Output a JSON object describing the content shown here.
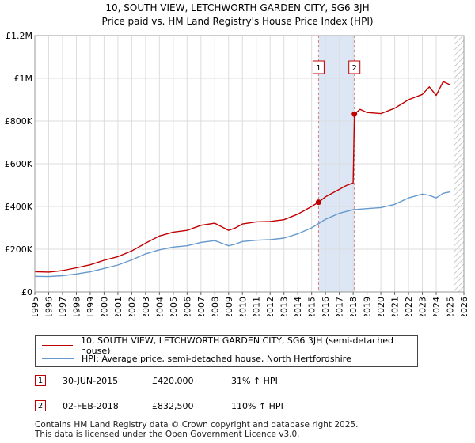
{
  "title_line1": "10, SOUTH VIEW, LETCHWORTH GARDEN CITY, SG6 3JH",
  "title_line2": "Price paid vs. HM Land Registry's House Price Index (HPI)",
  "colors": {
    "price": "#c00000",
    "hpi": "#6699cc",
    "shade": "#dce6f5",
    "grid": "#dddddd",
    "vline": "#d08080"
  },
  "chart_data": {
    "type": "line",
    "xlim": [
      1995,
      2026
    ],
    "ylim": [
      0,
      1200000
    ],
    "x_ticks": [
      "1995",
      "1996",
      "1997",
      "1998",
      "1999",
      "2000",
      "2001",
      "2002",
      "2003",
      "2004",
      "2005",
      "2006",
      "2007",
      "2008",
      "2009",
      "2010",
      "2011",
      "2012",
      "2013",
      "2014",
      "2015",
      "2016",
      "2017",
      "2018",
      "2019",
      "2020",
      "2021",
      "2022",
      "2023",
      "2024",
      "2025",
      "2026"
    ],
    "y_ticks": [
      {
        "value": 0,
        "label": "£0"
      },
      {
        "value": 200000,
        "label": "£200K"
      },
      {
        "value": 400000,
        "label": "£400K"
      },
      {
        "value": 600000,
        "label": "£600K"
      },
      {
        "value": 800000,
        "label": "£800K"
      },
      {
        "value": 1000000,
        "label": "£1M"
      },
      {
        "value": 1200000,
        "label": "£1.2M"
      }
    ],
    "shaded_span": [
      2015.5,
      2018.09
    ],
    "hatched_from": 2025.25,
    "series": [
      {
        "name": "10, SOUTH VIEW, LETCHWORTH GARDEN CITY, SG6 3JH (semi-detached house)",
        "color": "#c00000",
        "x": [
          1995,
          1996,
          1997,
          1998,
          1999,
          2000,
          2001,
          2002,
          2003,
          2004,
          2005,
          2006,
          2007,
          2008,
          2008.5,
          2009,
          2009.5,
          2010,
          2011,
          2012,
          2013,
          2014,
          2015,
          2015.5,
          2016,
          2017,
          2017.5,
          2018.0,
          2018.09,
          2018.5,
          2019,
          2020,
          2021,
          2022,
          2023,
          2023.5,
          2024,
          2024.5,
          2025
        ],
        "values": [
          95000,
          93000,
          100000,
          113000,
          127000,
          148000,
          165000,
          192000,
          228000,
          262000,
          280000,
          288000,
          312000,
          322000,
          305000,
          288000,
          300000,
          318000,
          328000,
          330000,
          338000,
          364000,
          400000,
          420000,
          445000,
          480000,
          498000,
          510000,
          832500,
          855000,
          840000,
          835000,
          860000,
          900000,
          925000,
          960000,
          920000,
          985000,
          970000
        ]
      },
      {
        "name": "HPI: Average price, semi-detached house, North Hertfordshire",
        "color": "#6699cc",
        "x": [
          1995,
          1996,
          1997,
          1998,
          1999,
          2000,
          2001,
          2002,
          2003,
          2004,
          2005,
          2006,
          2007,
          2008,
          2008.5,
          2009,
          2009.5,
          2010,
          2011,
          2012,
          2013,
          2014,
          2015,
          2015.5,
          2016,
          2017,
          2018,
          2019,
          2020,
          2021,
          2022,
          2023,
          2023.5,
          2024,
          2024.5,
          2025
        ],
        "values": [
          73000,
          72000,
          76000,
          84000,
          94000,
          110000,
          126000,
          150000,
          178000,
          197000,
          210000,
          216000,
          232000,
          240000,
          228000,
          216000,
          224000,
          236000,
          242000,
          245000,
          252000,
          272000,
          300000,
          320000,
          340000,
          368000,
          385000,
          390000,
          395000,
          410000,
          440000,
          458000,
          452000,
          440000,
          462000,
          468000
        ]
      }
    ],
    "markers": [
      {
        "label": "1",
        "x": 2015.5,
        "y": 420000
      },
      {
        "label": "2",
        "x": 2018.09,
        "y": 832500
      }
    ]
  },
  "legend": {
    "price_label": "10, SOUTH VIEW, LETCHWORTH GARDEN CITY, SG6 3JH (semi-detached house)",
    "hpi_label": "HPI: Average price, semi-detached house, North Hertfordshire"
  },
  "transactions": [
    {
      "num": "1",
      "date": "30-JUN-2015",
      "price": "£420,000",
      "hpi": "31% ↑ HPI"
    },
    {
      "num": "2",
      "date": "02-FEB-2018",
      "price": "£832,500",
      "hpi": "110% ↑ HPI"
    }
  ],
  "footer_line1": "Contains HM Land Registry data © Crown copyright and database right 2025.",
  "footer_line2": "This data is licensed under the Open Government Licence v3.0."
}
